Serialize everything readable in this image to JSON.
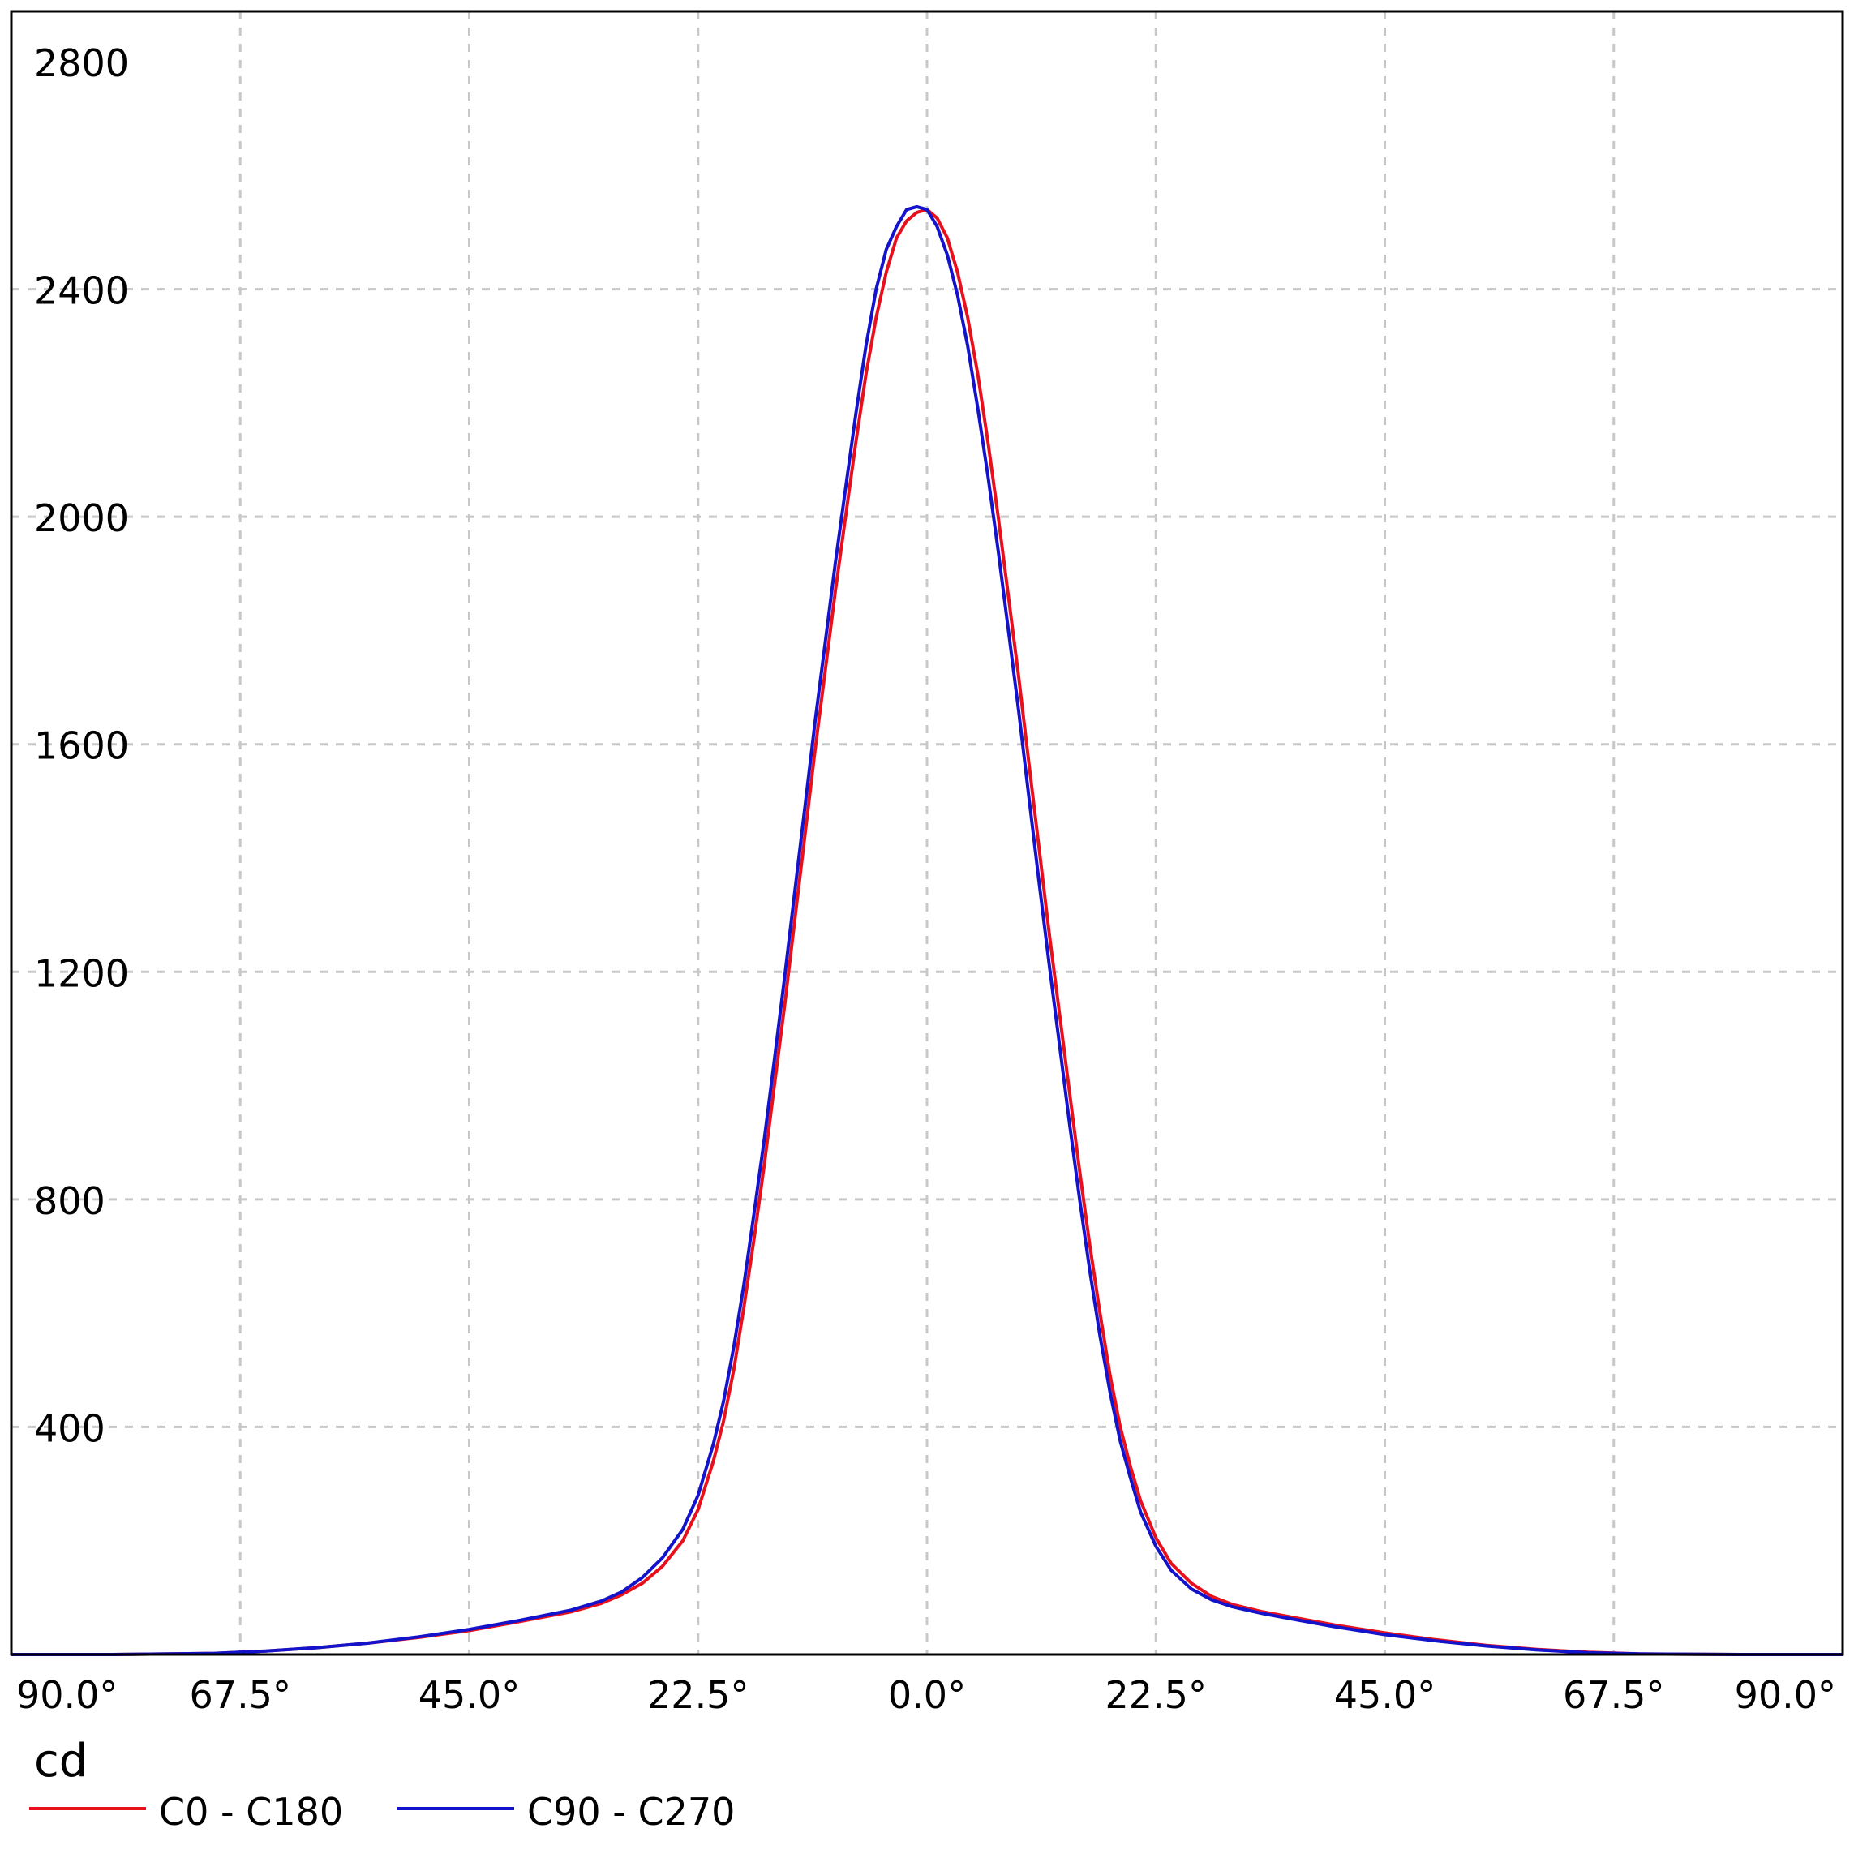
{
  "chart_data": {
    "type": "line",
    "title": "",
    "xlabel": "",
    "ylabel": "",
    "unit_label": "cd",
    "x_ticks": [
      "90.0°",
      "67.5°",
      "45.0°",
      "22.5°",
      "0.0°",
      "22.5°",
      "45.0°",
      "67.5°",
      "90.0°"
    ],
    "x_tick_values": [
      -90,
      -67.5,
      -45,
      -22.5,
      0,
      22.5,
      45,
      67.5,
      90
    ],
    "y_ticks": [
      "400",
      "800",
      "1200",
      "1600",
      "2000",
      "2400",
      "2800"
    ],
    "y_tick_values": [
      400,
      800,
      1200,
      1600,
      2000,
      2400,
      2800
    ],
    "xlim": [
      -90,
      90
    ],
    "ylim": [
      0,
      2800
    ],
    "grid": true,
    "legend_position": "bottom-left",
    "series": [
      {
        "name": "C0 - C180",
        "color": "#e8101c",
        "points": [
          [
            -90,
            0
          ],
          [
            -80,
            0
          ],
          [
            -70,
            2
          ],
          [
            -65,
            6
          ],
          [
            -60,
            12
          ],
          [
            -55,
            20
          ],
          [
            -50,
            30
          ],
          [
            -45,
            42
          ],
          [
            -40,
            58
          ],
          [
            -35,
            75
          ],
          [
            -32,
            90
          ],
          [
            -30,
            105
          ],
          [
            -28,
            125
          ],
          [
            -26,
            155
          ],
          [
            -24,
            200
          ],
          [
            -22.5,
            255
          ],
          [
            -21,
            340
          ],
          [
            -20,
            410
          ],
          [
            -19,
            500
          ],
          [
            -18,
            610
          ],
          [
            -17,
            730
          ],
          [
            -16,
            860
          ],
          [
            -15,
            1000
          ],
          [
            -14,
            1140
          ],
          [
            -13,
            1290
          ],
          [
            -12,
            1440
          ],
          [
            -11,
            1590
          ],
          [
            -10,
            1730
          ],
          [
            -9,
            1870
          ],
          [
            -8,
            2000
          ],
          [
            -7,
            2130
          ],
          [
            -6,
            2250
          ],
          [
            -5,
            2350
          ],
          [
            -4,
            2430
          ],
          [
            -3,
            2490
          ],
          [
            -2,
            2520
          ],
          [
            -1,
            2535
          ],
          [
            0,
            2540
          ],
          [
            1,
            2525
          ],
          [
            2,
            2490
          ],
          [
            3,
            2430
          ],
          [
            4,
            2350
          ],
          [
            5,
            2250
          ],
          [
            6,
            2130
          ],
          [
            7,
            2000
          ],
          [
            8,
            1860
          ],
          [
            9,
            1720
          ],
          [
            10,
            1570
          ],
          [
            11,
            1420
          ],
          [
            12,
            1270
          ],
          [
            13,
            1130
          ],
          [
            14,
            990
          ],
          [
            15,
            850
          ],
          [
            16,
            720
          ],
          [
            17,
            600
          ],
          [
            18,
            490
          ],
          [
            19,
            400
          ],
          [
            20,
            330
          ],
          [
            21,
            270
          ],
          [
            22.5,
            205
          ],
          [
            24,
            160
          ],
          [
            26,
            125
          ],
          [
            28,
            102
          ],
          [
            30,
            88
          ],
          [
            33,
            75
          ],
          [
            36,
            65
          ],
          [
            40,
            52
          ],
          [
            45,
            38
          ],
          [
            50,
            26
          ],
          [
            55,
            16
          ],
          [
            60,
            9
          ],
          [
            65,
            4
          ],
          [
            70,
            1
          ],
          [
            80,
            0
          ],
          [
            90,
            0
          ]
        ]
      },
      {
        "name": "C90 - C270",
        "color": "#1313cc",
        "points": [
          [
            -90,
            0
          ],
          [
            -80,
            0
          ],
          [
            -70,
            2
          ],
          [
            -65,
            6
          ],
          [
            -60,
            12
          ],
          [
            -55,
            20
          ],
          [
            -50,
            31
          ],
          [
            -45,
            44
          ],
          [
            -40,
            60
          ],
          [
            -35,
            78
          ],
          [
            -32,
            94
          ],
          [
            -30,
            110
          ],
          [
            -28,
            135
          ],
          [
            -26,
            170
          ],
          [
            -24,
            220
          ],
          [
            -22.5,
            280
          ],
          [
            -21,
            370
          ],
          [
            -20,
            445
          ],
          [
            -19,
            540
          ],
          [
            -18,
            650
          ],
          [
            -17,
            775
          ],
          [
            -16,
            905
          ],
          [
            -15,
            1045
          ],
          [
            -14,
            1190
          ],
          [
            -13,
            1340
          ],
          [
            -12,
            1490
          ],
          [
            -11,
            1640
          ],
          [
            -10,
            1780
          ],
          [
            -9,
            1920
          ],
          [
            -8,
            2050
          ],
          [
            -7,
            2180
          ],
          [
            -6,
            2300
          ],
          [
            -5,
            2400
          ],
          [
            -4,
            2470
          ],
          [
            -3,
            2510
          ],
          [
            -2,
            2540
          ],
          [
            -1,
            2545
          ],
          [
            0,
            2540
          ],
          [
            1,
            2510
          ],
          [
            2,
            2460
          ],
          [
            3,
            2390
          ],
          [
            4,
            2300
          ],
          [
            5,
            2190
          ],
          [
            6,
            2070
          ],
          [
            7,
            1940
          ],
          [
            8,
            1800
          ],
          [
            9,
            1660
          ],
          [
            10,
            1510
          ],
          [
            11,
            1360
          ],
          [
            12,
            1215
          ],
          [
            13,
            1075
          ],
          [
            14,
            935
          ],
          [
            15,
            800
          ],
          [
            16,
            675
          ],
          [
            17,
            560
          ],
          [
            18,
            460
          ],
          [
            19,
            375
          ],
          [
            20,
            310
          ],
          [
            21,
            250
          ],
          [
            22.5,
            190
          ],
          [
            24,
            148
          ],
          [
            26,
            115
          ],
          [
            28,
            96
          ],
          [
            30,
            84
          ],
          [
            33,
            72
          ],
          [
            36,
            62
          ],
          [
            40,
            49
          ],
          [
            45,
            35
          ],
          [
            50,
            24
          ],
          [
            55,
            15
          ],
          [
            60,
            8
          ],
          [
            65,
            3
          ],
          [
            70,
            1
          ],
          [
            80,
            0
          ],
          [
            90,
            0
          ]
        ]
      }
    ]
  }
}
